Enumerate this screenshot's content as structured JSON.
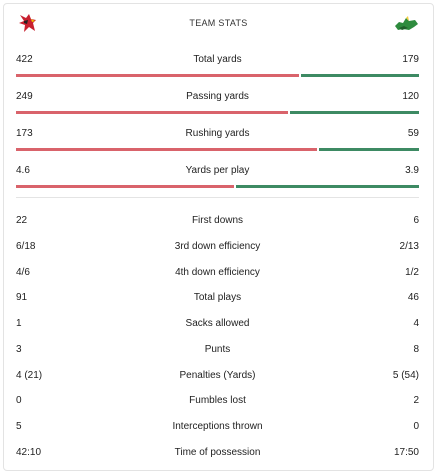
{
  "header": {
    "title": "TEAM STATS",
    "home_logo": "cardinal-logo-icon",
    "away_logo": "hornet-logo-icon",
    "colors": {
      "home": "#d9636b",
      "away": "#3d8a63"
    }
  },
  "bar_stats": [
    {
      "home": "422",
      "label": "Total yards",
      "away": "179",
      "home_share": 0.702
    },
    {
      "home": "249",
      "label": "Passing yards",
      "away": "120",
      "home_share": 0.675
    },
    {
      "home": "173",
      "label": "Rushing yards",
      "away": "59",
      "home_share": 0.746
    },
    {
      "home": "4.6",
      "label": "Yards per play",
      "away": "3.9",
      "home_share": 0.541
    }
  ],
  "stats": [
    {
      "home": "22",
      "label": "First downs",
      "away": "6"
    },
    {
      "home": "6/18",
      "label": "3rd down efficiency",
      "away": "2/13"
    },
    {
      "home": "4/6",
      "label": "4th down efficiency",
      "away": "1/2"
    },
    {
      "home": "91",
      "label": "Total plays",
      "away": "46"
    },
    {
      "home": "1",
      "label": "Sacks allowed",
      "away": "4"
    },
    {
      "home": "3",
      "label": "Punts",
      "away": "8"
    },
    {
      "home": "4 (21)",
      "label": "Penalties (Yards)",
      "away": "5 (54)"
    },
    {
      "home": "0",
      "label": "Fumbles lost",
      "away": "2"
    },
    {
      "home": "5",
      "label": "Interceptions thrown",
      "away": "0"
    },
    {
      "home": "42:10",
      "label": "Time of possession",
      "away": "17:50"
    }
  ]
}
